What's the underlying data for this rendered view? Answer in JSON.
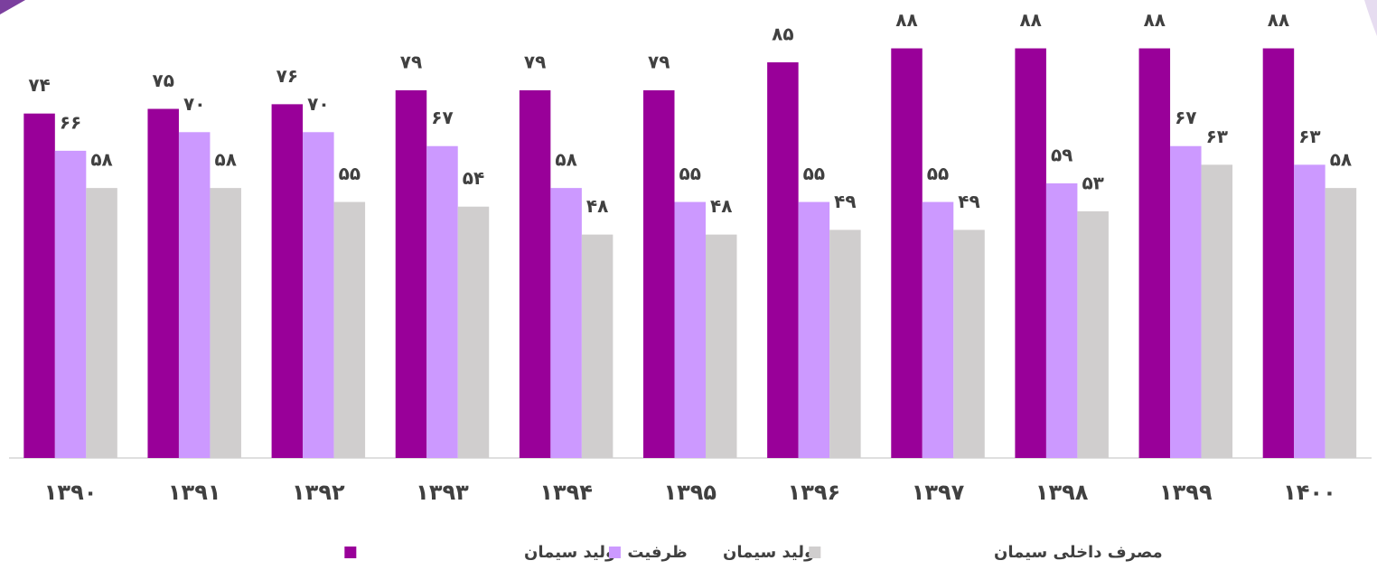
{
  "chart_data": {
    "type": "bar",
    "categories": [
      "۱۳۹۰",
      "۱۳۹۱",
      "۱۳۹۲",
      "۱۳۹۳",
      "۱۳۹۴",
      "۱۳۹۵",
      "۱۳۹۶",
      "۱۳۹۷",
      "۱۳۹۸",
      "۱۳۹۹",
      "۱۴۰۰"
    ],
    "series": [
      {
        "name": "ظرفیت تولید سیمان",
        "color": "#990099",
        "values": [
          74,
          75,
          76,
          79,
          79,
          79,
          85,
          88,
          88,
          88,
          88
        ],
        "value_labels": [
          "۷۴",
          "۷۵",
          "۷۶",
          "۷۹",
          "۷۹",
          "۷۹",
          "۸۵",
          "۸۸",
          "۸۸",
          "۸۸",
          "۸۸"
        ]
      },
      {
        "name": "تولید سیمان",
        "color": "#cc99ff",
        "values": [
          66,
          70,
          70,
          67,
          58,
          55,
          55,
          55,
          59,
          67,
          63
        ],
        "value_labels": [
          "۶۶",
          "۷۰",
          "۷۰",
          "۶۷",
          "۵۸",
          "۵۵",
          "۵۵",
          "۵۵",
          "۵۹",
          "۶۷",
          "۶۳"
        ]
      },
      {
        "name": "مصرف داخلی سیمان",
        "color": "#d0cece",
        "values": [
          58,
          58,
          55,
          54,
          48,
          48,
          49,
          49,
          53,
          63,
          58
        ],
        "value_labels": [
          "۵۸",
          "۵۸",
          "۵۵",
          "۵۴",
          "۴۸",
          "۴۸",
          "۴۹",
          "۴۹",
          "۵۳",
          "۶۳",
          "۵۸"
        ]
      }
    ],
    "ylim": [
      0,
      98
    ],
    "grid": false,
    "legend": "bottom"
  }
}
